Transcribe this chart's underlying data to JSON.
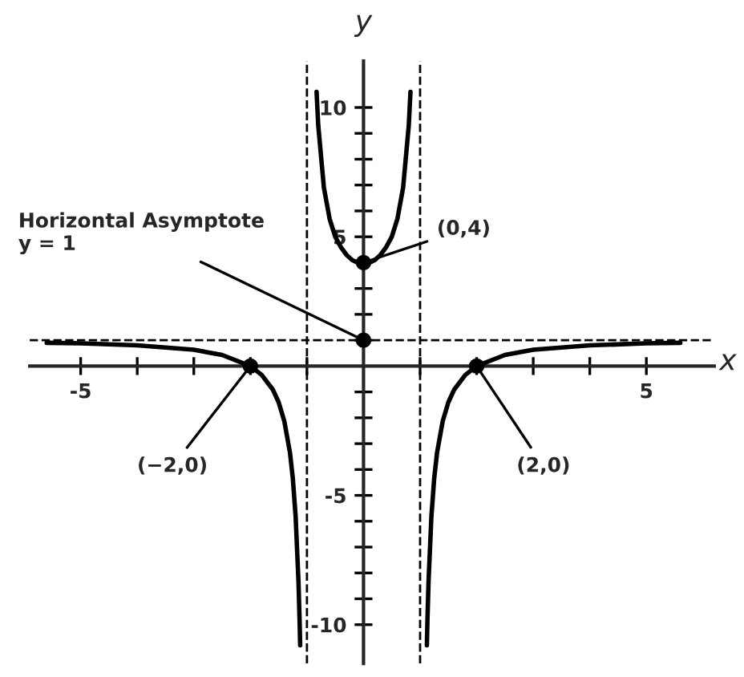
{
  "chart_data": {
    "type": "line",
    "xlabel": "x",
    "ylabel": "y",
    "series": [
      {
        "color": "#000000",
        "x": [
          -5.6,
          -5,
          -4,
          -3,
          -2.5,
          -2,
          -1.8,
          -1.6,
          -1.5,
          -1.4,
          -1.3,
          -1.25,
          -1.2,
          -1.15,
          -1.13,
          -1.12
        ],
        "values": [
          0.9,
          0.88,
          0.8,
          0.63,
          0.43,
          0,
          -0.34,
          -0.92,
          -1.4,
          -2.13,
          -3.35,
          -4.33,
          -5.82,
          -8.3,
          -9.83,
          -10.8
        ]
      },
      {
        "color": "#000000",
        "x": [
          -0.83,
          -0.8,
          -0.7,
          -0.6,
          -0.5,
          -0.4,
          -0.3,
          -0.2,
          -0.1,
          0,
          0.1,
          0.2,
          0.3,
          0.4,
          0.5,
          0.6,
          0.7,
          0.8,
          0.83
        ],
        "values": [
          10.6,
          9.3,
          6.9,
          5.7,
          5,
          4.6,
          4.3,
          4.1,
          4.0,
          4,
          4.0,
          4.1,
          4.3,
          4.6,
          5,
          5.7,
          6.9,
          9.3,
          10.6
        ]
      },
      {
        "color": "#000000",
        "x": [
          1.12,
          1.13,
          1.15,
          1.2,
          1.25,
          1.3,
          1.4,
          1.5,
          1.6,
          1.8,
          2,
          2.5,
          3,
          4,
          5,
          5.6
        ],
        "values": [
          -10.8,
          -9.83,
          -8.3,
          -5.82,
          -4.33,
          -3.35,
          -2.13,
          -1.4,
          -0.92,
          -0.34,
          0,
          0.43,
          0.63,
          0.8,
          0.88,
          0.9
        ]
      },
      {
        "type": "scatter",
        "marker": "circle",
        "color": "#000000",
        "x": [
          -2,
          0,
          0,
          2
        ],
        "values": [
          0,
          4,
          1,
          0
        ]
      }
    ],
    "xlim": [
      -5.9,
      6.2
    ],
    "ylim": [
      -11.5,
      11.8
    ],
    "xticks": [
      -5,
      {
        "value": -4,
        "label": null
      },
      {
        "value": -3,
        "label": null
      },
      {
        "value": -2,
        "label": null
      },
      {
        "value": -1,
        "label": null
      },
      {
        "value": 1,
        "label": null
      },
      {
        "value": 2,
        "label": null
      },
      {
        "value": 3,
        "label": null
      },
      {
        "value": 4,
        "label": null
      },
      5
    ],
    "yticks": [
      -10,
      {
        "value": -9,
        "label": null
      },
      {
        "value": -8,
        "label": null
      },
      {
        "value": -7,
        "label": null
      },
      {
        "value": -6,
        "label": null
      },
      -5,
      {
        "value": -4,
        "label": null
      },
      {
        "value": -3,
        "label": null
      },
      {
        "value": -2,
        "label": null
      },
      {
        "value": -1,
        "label": null
      },
      {
        "value": 1,
        "label": null
      },
      {
        "value": 2,
        "label": null
      },
      {
        "value": 3,
        "label": null
      },
      {
        "value": 4,
        "label": null
      },
      5,
      {
        "value": 6,
        "label": null
      },
      {
        "value": 7,
        "label": null
      },
      {
        "value": 8,
        "label": null
      },
      {
        "value": 9,
        "label": null
      },
      10
    ],
    "ref_lines": [
      {
        "axis": "x",
        "value": -1,
        "line_style": "dashed"
      },
      {
        "axis": "x",
        "value": 1,
        "line_style": "dashed"
      },
      {
        "axis": "y",
        "value": 1,
        "line_style": "dashed"
      }
    ],
    "annotations": [
      {
        "text": "(0,4)",
        "x": 0,
        "y": 4
      },
      {
        "text": "Horizontal Asymptote\ny = 1",
        "x": 0,
        "y": 1
      },
      {
        "text": "(−2,0)",
        "x": -2,
        "y": 0
      },
      {
        "text": "(2,0)",
        "x": 2,
        "y": 0
      }
    ],
    "grid": false,
    "legend": false,
    "marker": "none",
    "line_style": "solid"
  }
}
